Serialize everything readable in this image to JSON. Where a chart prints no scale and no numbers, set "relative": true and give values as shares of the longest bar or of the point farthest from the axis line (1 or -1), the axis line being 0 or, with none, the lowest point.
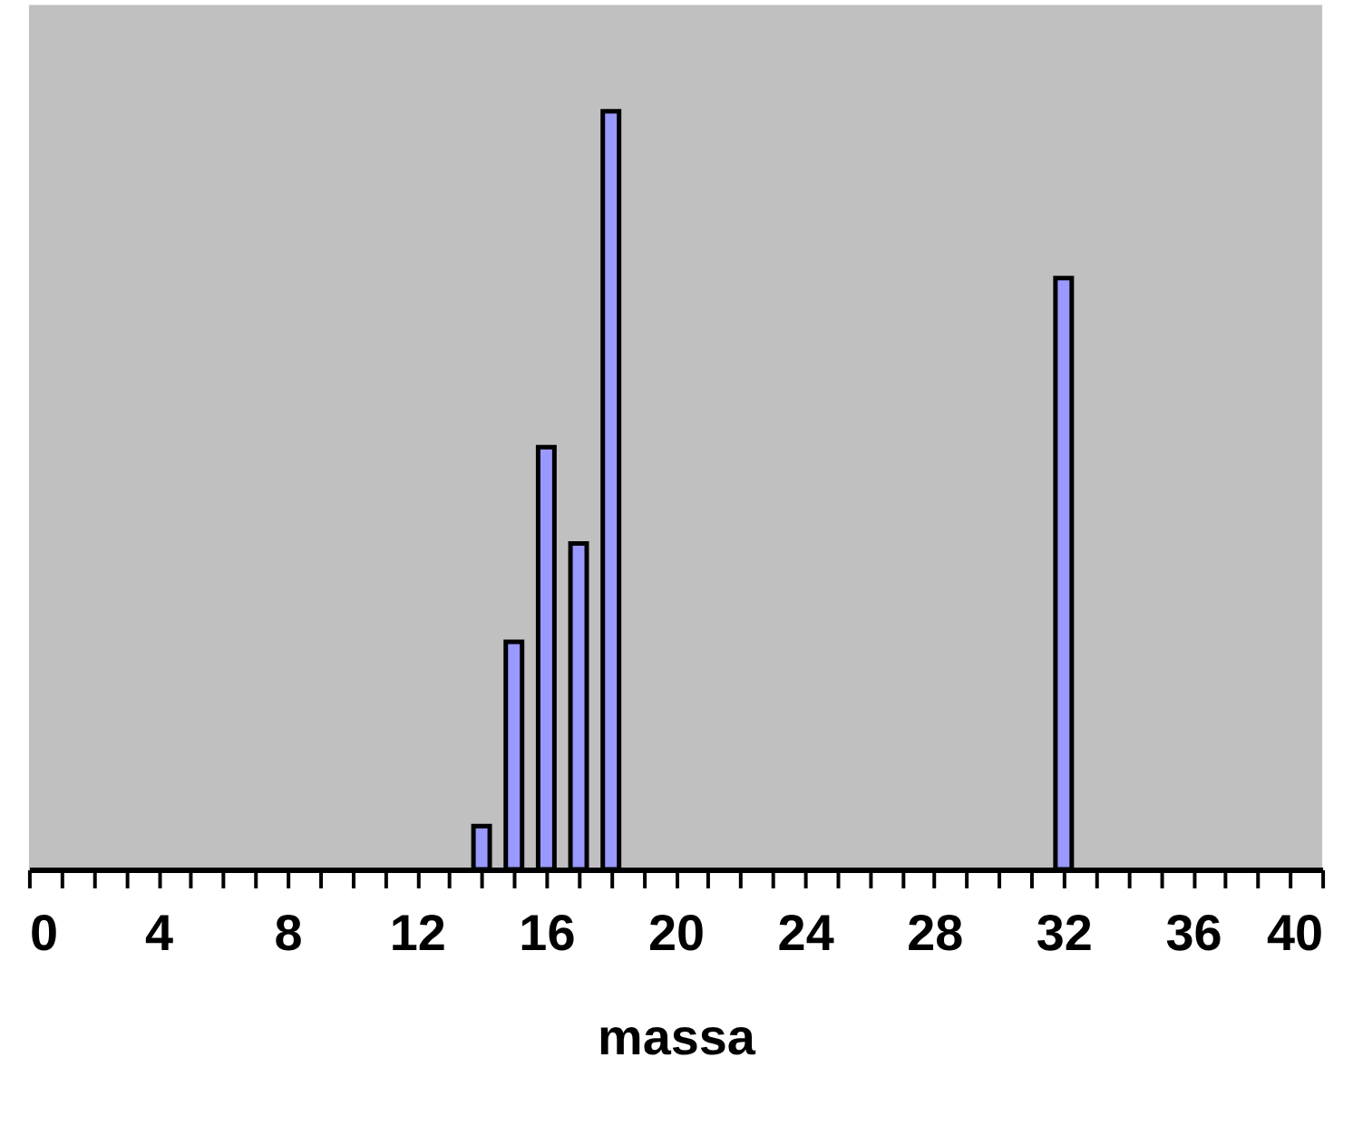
{
  "chart_data": {
    "type": "bar",
    "xlabel": "massa",
    "relative": true,
    "x": [
      14,
      15,
      16,
      17,
      18,
      32
    ],
    "values": [
      0.057,
      0.3,
      0.557,
      0.43,
      1,
      0.78
    ],
    "color": "#9999ff",
    "xlim": [
      0,
      40
    ],
    "xticks": [
      0,
      {
        "value": 1,
        "label": null
      },
      {
        "value": 2,
        "label": null
      },
      {
        "value": 3,
        "label": null
      },
      4,
      {
        "value": 5,
        "label": null
      },
      {
        "value": 6,
        "label": null
      },
      {
        "value": 7,
        "label": null
      },
      8,
      {
        "value": 9,
        "label": null
      },
      {
        "value": 10,
        "label": null
      },
      {
        "value": 11,
        "label": null
      },
      12,
      {
        "value": 13,
        "label": null
      },
      {
        "value": 14,
        "label": null
      },
      {
        "value": 15,
        "label": null
      },
      16,
      {
        "value": 17,
        "label": null
      },
      {
        "value": 18,
        "label": null
      },
      {
        "value": 19,
        "label": null
      },
      20,
      {
        "value": 21,
        "label": null
      },
      {
        "value": 22,
        "label": null
      },
      {
        "value": 23,
        "label": null
      },
      24,
      {
        "value": 25,
        "label": null
      },
      {
        "value": 26,
        "label": null
      },
      {
        "value": 27,
        "label": null
      },
      28,
      {
        "value": 29,
        "label": null
      },
      {
        "value": 30,
        "label": null
      },
      {
        "value": 31,
        "label": null
      },
      32,
      {
        "value": 33,
        "label": null
      },
      {
        "value": 34,
        "label": null
      },
      {
        "value": 35,
        "label": null
      },
      36,
      {
        "value": 37,
        "label": null
      },
      {
        "value": 38,
        "label": null
      },
      {
        "value": 39,
        "label": null
      },
      40
    ],
    "grid": false
  }
}
